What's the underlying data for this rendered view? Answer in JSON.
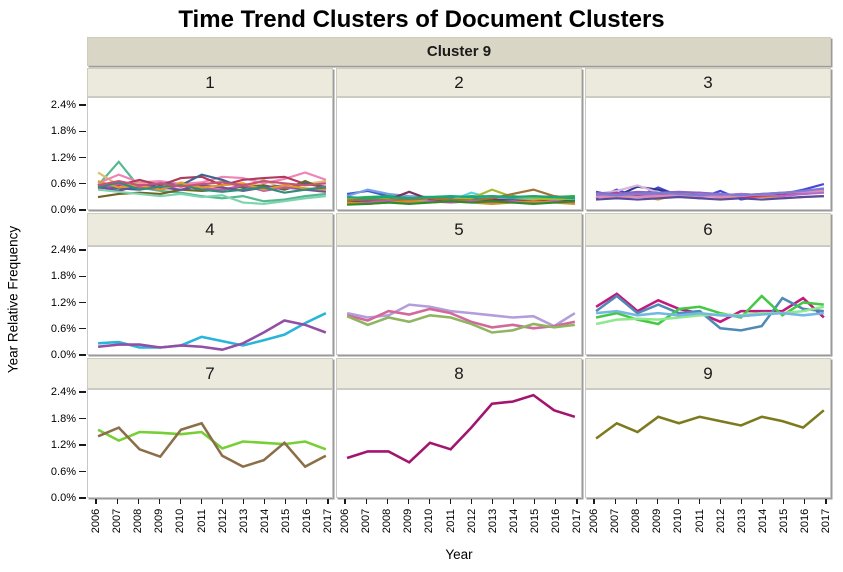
{
  "chart_data": {
    "type": "line",
    "title": "Time Trend Clusters of Document Clusters",
    "outer_facet_label": "Cluster 9",
    "xlabel": "Year",
    "ylabel": "Year Relative Frequency",
    "x": [
      2006,
      2007,
      2008,
      2009,
      2010,
      2011,
      2012,
      2013,
      2014,
      2015,
      2016,
      2017
    ],
    "ylim": [
      0,
      2.4
    ],
    "ytick_values": [
      0,
      0.6,
      1.2,
      1.8,
      2.4
    ],
    "ytick_labels": [
      "0.0%",
      "0.6%",
      "1.2%",
      "1.8%",
      "2.4%"
    ],
    "grid": false,
    "legend_position": "none",
    "facets": [
      {
        "label": "1",
        "series": [
          {
            "color": "#56b890",
            "values": [
              0.55,
              1.1,
              0.5,
              0.42,
              0.38,
              0.3,
              0.25,
              0.3,
              0.18,
              0.22,
              0.3,
              0.35
            ]
          },
          {
            "color": "#d9c269",
            "values": [
              0.85,
              0.55,
              0.6,
              0.5,
              0.62,
              0.55,
              0.65,
              0.48,
              0.68,
              0.45,
              0.58,
              0.65
            ]
          },
          {
            "color": "#ee85b5",
            "values": [
              0.6,
              0.8,
              0.62,
              0.65,
              0.58,
              0.62,
              0.75,
              0.72,
              0.6,
              0.7,
              0.85,
              0.68
            ]
          },
          {
            "color": "#b23a5e",
            "values": [
              0.48,
              0.55,
              0.68,
              0.55,
              0.72,
              0.75,
              0.55,
              0.68,
              0.72,
              0.75,
              0.58,
              0.52
            ]
          },
          {
            "color": "#3d6492",
            "values": [
              0.55,
              0.48,
              0.45,
              0.6,
              0.55,
              0.8,
              0.68,
              0.5,
              0.55,
              0.45,
              0.6,
              0.5
            ]
          },
          {
            "color": "#6f6524",
            "values": [
              0.28,
              0.35,
              0.38,
              0.35,
              0.45,
              0.42,
              0.45,
              0.52,
              0.55,
              0.45,
              0.65,
              0.45
            ]
          },
          {
            "color": "#bf58a8",
            "values": [
              0.45,
              0.58,
              0.5,
              0.45,
              0.55,
              0.48,
              0.45,
              0.55,
              0.42,
              0.5,
              0.45,
              0.52
            ]
          },
          {
            "color": "#6e4f9b",
            "values": [
              0.52,
              0.42,
              0.55,
              0.5,
              0.45,
              0.55,
              0.5,
              0.42,
              0.5,
              0.55,
              0.45,
              0.4
            ]
          },
          {
            "color": "#e0992a",
            "values": [
              0.65,
              0.5,
              0.55,
              0.45,
              0.6,
              0.5,
              0.55,
              0.6,
              0.45,
              0.55,
              0.48,
              0.45
            ]
          },
          {
            "color": "#2f8d7c",
            "values": [
              0.5,
              0.62,
              0.45,
              0.52,
              0.55,
              0.45,
              0.4,
              0.45,
              0.5,
              0.38,
              0.45,
              0.5
            ]
          },
          {
            "color": "#7fd4b0",
            "values": [
              0.45,
              0.4,
              0.35,
              0.3,
              0.35,
              0.28,
              0.32,
              0.15,
              0.12,
              0.18,
              0.25,
              0.3
            ]
          },
          {
            "color": "#c7527a",
            "values": [
              0.55,
              0.65,
              0.55,
              0.6,
              0.52,
              0.58,
              0.62,
              0.55,
              0.65,
              0.6,
              0.55,
              0.6
            ]
          }
        ]
      },
      {
        "label": "2",
        "series": [
          {
            "color": "#3a5fcd",
            "values": [
              0.35,
              0.42,
              0.3,
              0.28,
              0.25,
              0.22,
              0.25,
              0.22,
              0.25,
              0.28,
              0.25,
              0.22
            ]
          },
          {
            "color": "#7b9de8",
            "values": [
              0.3,
              0.45,
              0.35,
              0.3,
              0.28,
              0.25,
              0.28,
              0.3,
              0.25,
              0.22,
              0.25,
              0.2
            ]
          },
          {
            "color": "#22b14c",
            "values": [
              0.25,
              0.28,
              0.3,
              0.25,
              0.28,
              0.25,
              0.3,
              0.28,
              0.3,
              0.25,
              0.28,
              0.3
            ]
          },
          {
            "color": "#1f9e9e",
            "values": [
              0.2,
              0.22,
              0.25,
              0.22,
              0.2,
              0.25,
              0.22,
              0.25,
              0.22,
              0.2,
              0.22,
              0.25
            ]
          },
          {
            "color": "#5fd0dc",
            "values": [
              0.15,
              0.18,
              0.2,
              0.18,
              0.22,
              0.2,
              0.38,
              0.25,
              0.2,
              0.22,
              0.18,
              0.2
            ]
          },
          {
            "color": "#7c3558",
            "values": [
              0.18,
              0.2,
              0.22,
              0.4,
              0.22,
              0.2,
              0.18,
              0.22,
              0.2,
              0.18,
              0.2,
              0.18
            ]
          },
          {
            "color": "#aab92f",
            "values": [
              0.22,
              0.25,
              0.22,
              0.2,
              0.25,
              0.22,
              0.25,
              0.45,
              0.28,
              0.25,
              0.22,
              0.25
            ]
          },
          {
            "color": "#a2703a",
            "values": [
              0.2,
              0.22,
              0.2,
              0.22,
              0.25,
              0.22,
              0.2,
              0.25,
              0.35,
              0.45,
              0.3,
              0.25
            ]
          },
          {
            "color": "#cc55cc",
            "values": [
              0.12,
              0.15,
              0.18,
              0.15,
              0.18,
              0.15,
              0.18,
              0.15,
              0.18,
              0.15,
              0.18,
              0.15
            ]
          },
          {
            "color": "#d88a2e",
            "values": [
              0.15,
              0.12,
              0.15,
              0.18,
              0.15,
              0.18,
              0.15,
              0.12,
              0.15,
              0.18,
              0.15,
              0.12
            ]
          },
          {
            "color": "#2e8b2e",
            "values": [
              0.1,
              0.12,
              0.15,
              0.12,
              0.15,
              0.18,
              0.15,
              0.18,
              0.15,
              0.12,
              0.15,
              0.18
            ]
          },
          {
            "color": "#18a87a",
            "values": [
              0.28,
              0.25,
              0.28,
              0.25,
              0.28,
              0.3,
              0.28,
              0.3,
              0.28,
              0.3,
              0.28,
              0.25
            ]
          }
        ]
      },
      {
        "label": "3",
        "series": [
          {
            "color": "#4747dd",
            "values": [
              0.25,
              0.45,
              0.28,
              0.5,
              0.3,
              0.25,
              0.42,
              0.22,
              0.3,
              0.35,
              0.45,
              0.58
            ]
          },
          {
            "color": "#2c3b8e",
            "values": [
              0.4,
              0.3,
              0.52,
              0.45,
              0.35,
              0.38,
              0.3,
              0.35,
              0.32,
              0.35,
              0.38,
              0.42
            ]
          },
          {
            "color": "#d9b6da",
            "values": [
              0.35,
              0.42,
              0.55,
              0.38,
              0.35,
              0.32,
              0.35,
              0.3,
              0.28,
              0.32,
              0.35,
              0.38
            ]
          },
          {
            "color": "#d4a91f",
            "values": [
              0.3,
              0.25,
              0.3,
              0.22,
              0.35,
              0.38,
              0.25,
              0.3,
              0.28,
              0.25,
              0.28,
              0.3
            ]
          },
          {
            "color": "#cc3368",
            "values": [
              0.32,
              0.38,
              0.3,
              0.35,
              0.32,
              0.35,
              0.32,
              0.28,
              0.3,
              0.32,
              0.35,
              0.4
            ]
          },
          {
            "color": "#8a63c9",
            "values": [
              0.38,
              0.35,
              0.4,
              0.38,
              0.4,
              0.38,
              0.35,
              0.32,
              0.35,
              0.38,
              0.4,
              0.45
            ]
          },
          {
            "color": "#b06ad0",
            "values": [
              0.3,
              0.32,
              0.35,
              0.32,
              0.3,
              0.35,
              0.32,
              0.35,
              0.32,
              0.3,
              0.35,
              0.38
            ]
          },
          {
            "color": "#dd8abb",
            "values": [
              0.28,
              0.3,
              0.28,
              0.3,
              0.32,
              0.3,
              0.28,
              0.3,
              0.35,
              0.38,
              0.4,
              0.42
            ]
          },
          {
            "color": "#584a9c",
            "values": [
              0.22,
              0.25,
              0.22,
              0.25,
              0.28,
              0.25,
              0.22,
              0.25,
              0.22,
              0.25,
              0.28,
              0.3
            ]
          },
          {
            "color": "#7d7dd0",
            "values": [
              0.35,
              0.32,
              0.35,
              0.38,
              0.35,
              0.32,
              0.35,
              0.32,
              0.35,
              0.38,
              0.42,
              0.48
            ]
          }
        ]
      },
      {
        "label": "4",
        "series": [
          {
            "color": "#29b5d9",
            "values": [
              0.25,
              0.28,
              0.15,
              0.15,
              0.2,
              0.4,
              0.3,
              0.2,
              0.32,
              0.45,
              0.72,
              0.95
            ]
          },
          {
            "color": "#9150a5",
            "values": [
              0.17,
              0.22,
              0.22,
              0.15,
              0.2,
              0.17,
              0.1,
              0.25,
              0.5,
              0.78,
              0.68,
              0.5
            ]
          }
        ]
      },
      {
        "label": "5",
        "series": [
          {
            "color": "#b39dda",
            "values": [
              0.95,
              0.85,
              0.9,
              1.15,
              1.1,
              1.0,
              0.95,
              0.9,
              0.85,
              0.88,
              0.65,
              0.95
            ]
          },
          {
            "color": "#d2699b",
            "values": [
              0.9,
              0.78,
              1.0,
              0.92,
              1.05,
              0.95,
              0.75,
              0.62,
              0.68,
              0.6,
              0.65,
              0.75
            ]
          },
          {
            "color": "#8fb561",
            "values": [
              0.88,
              0.68,
              0.85,
              0.75,
              0.9,
              0.85,
              0.7,
              0.5,
              0.55,
              0.7,
              0.62,
              0.68
            ]
          }
        ]
      },
      {
        "label": "6",
        "series": [
          {
            "color": "#c2187e",
            "values": [
              1.1,
              1.4,
              1.0,
              1.25,
              1.05,
              0.95,
              0.75,
              1.0,
              1.0,
              1.0,
              1.3,
              0.85
            ]
          },
          {
            "color": "#4e8ab5",
            "values": [
              1.0,
              1.35,
              0.95,
              1.15,
              0.95,
              1.0,
              0.6,
              0.55,
              0.65,
              1.3,
              1.05,
              1.0
            ]
          },
          {
            "color": "#45c945",
            "values": [
              0.85,
              0.95,
              0.8,
              0.7,
              1.05,
              1.1,
              0.95,
              0.85,
              1.35,
              0.9,
              1.2,
              1.15
            ]
          },
          {
            "color": "#8fe88f",
            "values": [
              0.7,
              0.8,
              0.82,
              0.8,
              0.85,
              0.9,
              0.92,
              0.9,
              0.95,
              0.95,
              1.0,
              1.1
            ]
          },
          {
            "color": "#74b7e3",
            "values": [
              0.95,
              1.0,
              0.9,
              0.95,
              0.9,
              0.95,
              0.9,
              0.88,
              0.92,
              0.95,
              0.9,
              0.95
            ]
          }
        ]
      },
      {
        "label": "7",
        "series": [
          {
            "color": "#76cf35",
            "values": [
              1.55,
              1.3,
              1.5,
              1.48,
              1.45,
              1.5,
              1.12,
              1.28,
              1.25,
              1.22,
              1.28,
              1.1
            ]
          },
          {
            "color": "#8b6f48",
            "values": [
              1.4,
              1.6,
              1.1,
              0.93,
              1.55,
              1.7,
              0.95,
              0.7,
              0.85,
              1.25,
              0.7,
              0.95
            ]
          }
        ]
      },
      {
        "label": "8",
        "series": [
          {
            "color": "#a2156f",
            "values": [
              0.9,
              1.05,
              1.05,
              0.8,
              1.25,
              1.1,
              1.6,
              2.15,
              2.2,
              2.35,
              2.0,
              1.85
            ]
          }
        ]
      },
      {
        "label": "9",
        "series": [
          {
            "color": "#7d7a1e",
            "values": [
              1.35,
              1.7,
              1.5,
              1.85,
              1.7,
              1.85,
              1.75,
              1.65,
              1.85,
              1.75,
              1.6,
              2.0
            ]
          }
        ]
      }
    ]
  },
  "colors": {
    "outer_strip_bg": "#dad6c5",
    "facet_strip_bg": "#eceadd",
    "panel_bg": "#ffffff",
    "panel_border": "#c9c9c9",
    "shadow": "#9a9a9a",
    "text": "#000000"
  }
}
